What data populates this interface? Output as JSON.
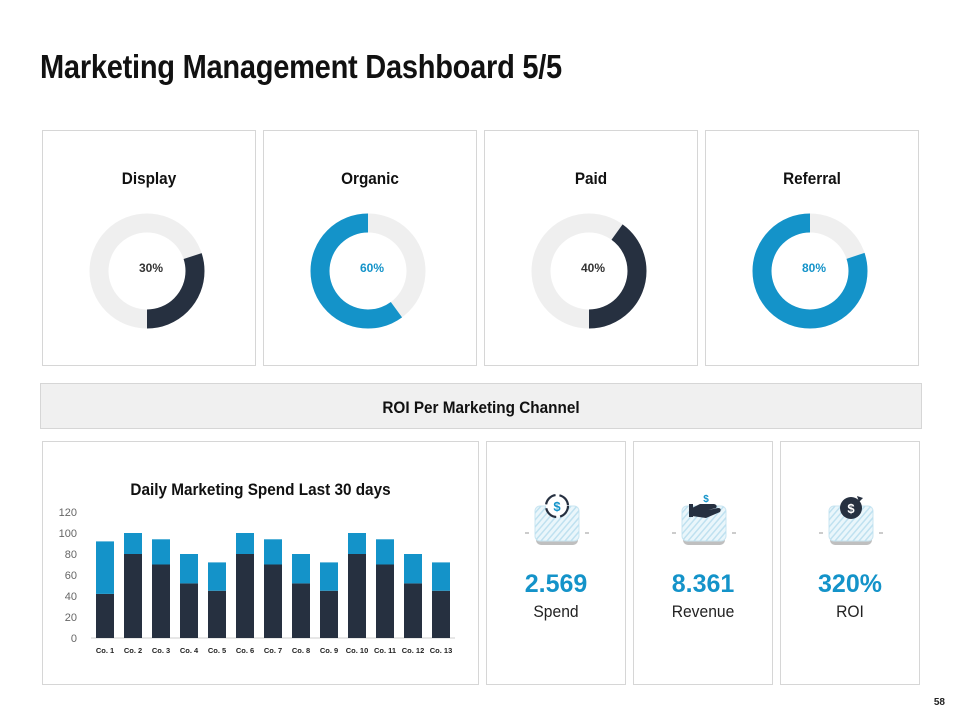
{
  "page": {
    "title": "Marketing Management Dashboard 5/5",
    "page_number": "58"
  },
  "colors": {
    "dark": "#263040",
    "blue": "#1493c9",
    "track": "#efefef",
    "panel_bg": "#f0f0f0",
    "border": "#d6d6d6"
  },
  "donuts": [
    {
      "label": "Display",
      "value": 30,
      "display": "30%",
      "color": "#263040"
    },
    {
      "label": "Organic",
      "value": 60,
      "display": "60%",
      "color": "#1493c9"
    },
    {
      "label": "Paid",
      "value": 40,
      "display": "40%",
      "color": "#263040"
    },
    {
      "label": "Referral",
      "value": 80,
      "display": "80%",
      "color": "#1493c9"
    }
  ],
  "roi_section": {
    "title": "ROI Per Marketing Channel"
  },
  "chart_data": {
    "type": "bar",
    "stacked": true,
    "title": "Daily Marketing Spend Last 30 days",
    "categories": [
      "Co. 1",
      "Co. 2",
      "Co. 3",
      "Co. 4",
      "Co. 5",
      "Co. 6",
      "Co. 7",
      "Co. 8",
      "Co. 9",
      "Co. 10",
      "Co. 11",
      "Co. 12",
      "Co. 13"
    ],
    "series": [
      {
        "values": [
          42,
          80,
          70,
          52,
          45,
          80,
          70,
          52,
          45,
          80,
          70,
          52,
          45
        ],
        "color": "#263040"
      },
      {
        "values": [
          50,
          20,
          24,
          28,
          27,
          20,
          24,
          28,
          27,
          20,
          24,
          28,
          27
        ],
        "color": "#1493c9"
      }
    ],
    "ylim": [
      0,
      120
    ],
    "yticks": [
      0,
      20,
      40,
      60,
      80,
      100,
      120
    ],
    "grid": false,
    "legend": "none"
  },
  "kpis": [
    {
      "value": "2.569",
      "label": "Spend",
      "icon": "dollar-cycle-icon"
    },
    {
      "value": "8.361",
      "label": "Revenue",
      "icon": "hand-dollar-icon"
    },
    {
      "value": "320%",
      "label": "ROI",
      "icon": "dollar-refresh-icon"
    }
  ]
}
